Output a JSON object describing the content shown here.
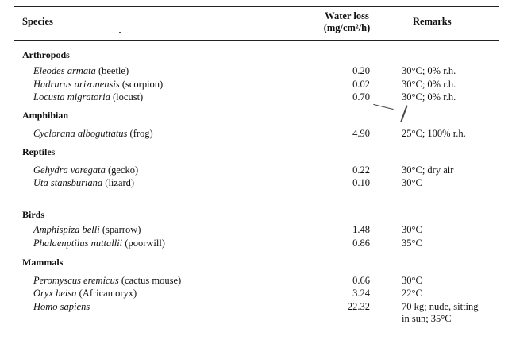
{
  "header": {
    "species": "Species",
    "water_loss_line1": "Water loss",
    "water_loss_line2": "(mg/cm²/h)",
    "remarks": "Remarks"
  },
  "groups": [
    {
      "name": "Arthropods",
      "rows": [
        {
          "latin": "Eleodes armata",
          "common": " (beetle)",
          "value": "0.20",
          "remark": "30°C; 0% r.h."
        },
        {
          "latin": "Hadrurus arizonensis",
          "common": " (scorpion)",
          "value": "0.02",
          "remark": "30°C; 0% r.h."
        },
        {
          "latin": "Locusta migratoria",
          "common": " (locust)",
          "value": "0.70",
          "remark": "30°C; 0% r.h."
        }
      ]
    },
    {
      "name": "Amphibian",
      "rows": [
        {
          "latin": "Cyclorana alboguttatus",
          "common": " (frog)",
          "value": "4.90",
          "remark": "25°C; 100% r.h."
        }
      ]
    },
    {
      "name": "Reptiles",
      "rows": [
        {
          "latin": "Gehydra varegata",
          "common": " (gecko)",
          "value": "0.22",
          "remark": "30°C; dry air"
        },
        {
          "latin": "Uta stansburiana",
          "common": " (lizard)",
          "value": "0.10",
          "remark": "30°C"
        }
      ]
    },
    {
      "name": "Birds",
      "rows": [
        {
          "latin": "Amphispiza belli",
          "common": " (sparrow)",
          "value": "1.48",
          "remark": "30°C"
        },
        {
          "latin": "Phalaenptilus nuttallii",
          "common": " (poorwill)",
          "value": "0.86",
          "remark": "35°C"
        }
      ]
    },
    {
      "name": "Mammals",
      "rows": [
        {
          "latin": "Peromyscus eremicus",
          "common": " (cactus mouse)",
          "value": "0.66",
          "remark": "30°C"
        },
        {
          "latin": "Oryx beisa",
          "common": " (African oryx)",
          "value": "3.24",
          "remark": "22°C"
        },
        {
          "latin": "Homo sapiens",
          "common": "",
          "value": "22.32",
          "remark": "70 kg; nude, sitting",
          "remark2": "in sun; 35°C"
        }
      ]
    }
  ]
}
